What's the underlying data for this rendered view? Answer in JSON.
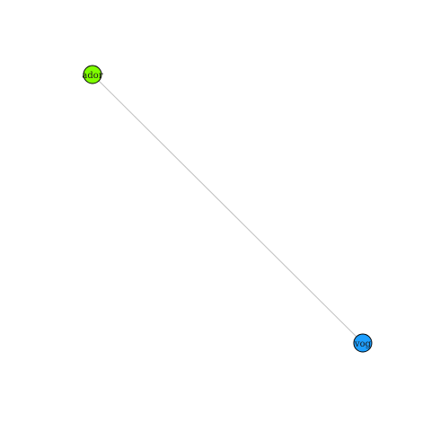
{
  "graph": {
    "nodes": [
      {
        "id": "ador",
        "label": "ador",
        "color": "#7fff00"
      },
      {
        "id": "vog",
        "label": "vog",
        "color": "#1e9fff"
      }
    ],
    "edges": [
      {
        "source": "ador",
        "target": "vog",
        "color": "#bfbfbf"
      }
    ]
  }
}
